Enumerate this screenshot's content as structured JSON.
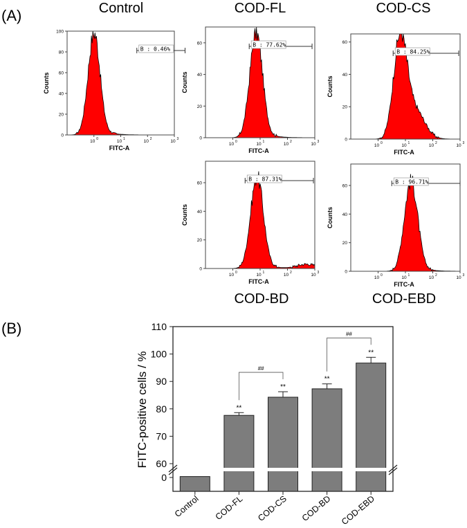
{
  "panel_a_label": "(A)",
  "panel_b_label": "(B)",
  "flow_panels": [
    {
      "title": "Control",
      "gate": "B : 0.46%",
      "ymax": 100,
      "yticks": [
        0,
        20,
        40,
        60,
        80,
        100
      ],
      "peak": 0.0,
      "width": 0.22,
      "height": 98,
      "tail": 0.0,
      "tailh": 0,
      "gate_from": 1.6,
      "gate_to": 3.4
    },
    {
      "title": "COD-FL",
      "gate": "B : 77.62%",
      "ymax": 70,
      "yticks": [
        0,
        20,
        40,
        60
      ],
      "peak": 0.85,
      "width": 0.23,
      "height": 66,
      "tail": 0.0,
      "tailh": 0,
      "gate_from": 0.6,
      "gate_to": 2.9
    },
    {
      "title": "COD-CS",
      "gate": "B : 84.25%",
      "ymax": 65,
      "yticks": [
        0,
        20,
        40,
        60
      ],
      "peak": 0.8,
      "width": 0.24,
      "height": 61,
      "tail": 1.35,
      "tailh": 17,
      "gate_from": 0.55,
      "gate_to": 2.95
    },
    {
      "title": "COD-BD",
      "gate": "B : 87.31%",
      "ymax": 75,
      "yticks": [
        0,
        20,
        40,
        60
      ],
      "peak": 0.88,
      "width": 0.23,
      "height": 64,
      "tail": 2.7,
      "tailh": 3,
      "gate_from": 0.45,
      "gate_to": 2.95
    },
    {
      "title": "COD-EBD",
      "gate": "B : 96.71%",
      "ymax": 75,
      "yticks": [
        0,
        20,
        40,
        60
      ],
      "peak": 1.2,
      "width": 0.24,
      "height": 63,
      "tail": 0.0,
      "tailh": 0,
      "gate_from": 0.5,
      "gate_to": 3.0
    }
  ],
  "flow_axis": {
    "xlabel": "FITC-A",
    "ylabel": "Counts",
    "xticks": [
      "10",
      "10",
      "10",
      "10",
      "10"
    ],
    "xexp": [
      "0",
      "1",
      "2",
      "3",
      ""
    ],
    "xdecades": [
      -1,
      3
    ]
  },
  "chart_data": {
    "type": "bar",
    "title": "",
    "xlabel": "",
    "ylabel": "FITC-positive cells / %",
    "categories": [
      "Control",
      "COD-FL",
      "COD-CS",
      "COD-BD",
      "COD-EBD"
    ],
    "values": [
      0.46,
      77.62,
      84.25,
      87.31,
      96.71
    ],
    "errors": [
      0.1,
      1.0,
      2.0,
      1.8,
      2.1
    ],
    "significance": [
      "",
      "**",
      "**",
      "**",
      "**"
    ],
    "brackets": [
      {
        "from": "COD-FL",
        "to": "COD-CS",
        "label": "##"
      },
      {
        "from": "COD-BD",
        "to": "COD-EBD",
        "label": "##"
      }
    ],
    "ylim_upper": [
      60,
      110
    ],
    "yticks_upper": [
      60,
      70,
      80,
      90,
      100,
      110
    ],
    "ylim_lower": [
      0,
      1
    ],
    "yticks_lower": [
      0
    ],
    "bar_color": "#7d7d7d"
  },
  "colors": {
    "histogram_fill": "#ff0000",
    "histogram_outline": "#000000",
    "bar": "#7d7d7d"
  }
}
